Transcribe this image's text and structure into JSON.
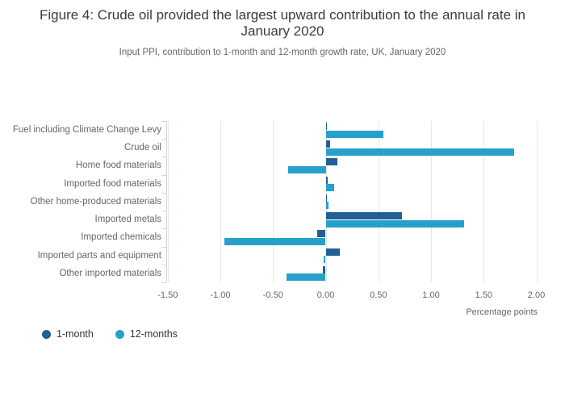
{
  "chart_data": {
    "type": "bar",
    "orientation": "horizontal",
    "title": "Figure 4: Crude oil provided the largest upward contribution to the annual rate in January 2020",
    "subtitle": "Input PPI, contribution to 1-month and 12-month growth rate, UK, January 2020",
    "categories": [
      "Fuel including Climate Change Levy",
      "Crude oil",
      "Home food materials",
      "Imported food materials",
      "Other home-produced materials",
      "Imported metals",
      "Imported chemicals",
      "Imported parts and equipment",
      "Other imported materials"
    ],
    "series": [
      {
        "name": "1-month",
        "color": "#206095",
        "values": [
          0.01,
          0.04,
          0.11,
          0.02,
          0.01,
          0.72,
          -0.08,
          0.13,
          -0.03
        ]
      },
      {
        "name": "12-months",
        "color": "#27a0cc",
        "values": [
          0.55,
          1.79,
          -0.36,
          0.08,
          0.03,
          1.31,
          -0.96,
          -0.02,
          -0.37
        ]
      }
    ],
    "xlabel": "Percentage points",
    "x_tick_labels": [
      "-1.50",
      "-1.00",
      "-0.50",
      "0.00",
      "0.50",
      "1.00",
      "1.50",
      "2.00"
    ],
    "x_tick_values": [
      -1.5,
      -1.0,
      -0.5,
      0.0,
      0.5,
      1.0,
      1.5,
      2.0
    ],
    "xlim": [
      -1.51,
      2.1
    ],
    "grid": true,
    "legend_position": "bottom-left",
    "axis_line_color": "#ccd6eb",
    "gridline_color": "#e6e6e6",
    "label_color": "#666666",
    "title_color": "#3b3b3b"
  }
}
